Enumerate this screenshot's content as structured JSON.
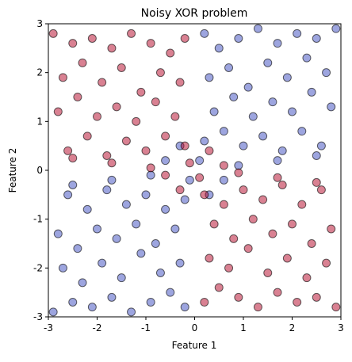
{
  "chart_data": {
    "type": "scatter",
    "title": "Noisy XOR problem",
    "xlabel": "Feature 1",
    "ylabel": "Feature 2",
    "xlim": [
      -3,
      3
    ],
    "ylim": [
      -3,
      3
    ],
    "xticks": [
      -3,
      -2,
      -1,
      0,
      1,
      2,
      3
    ],
    "yticks": [
      -3,
      -2,
      -1,
      0,
      1,
      2,
      3
    ],
    "series": [
      {
        "color": "#3b4cc0",
        "x": [
          0.2,
          0.5,
          0.9,
          1.3,
          1.7,
          2.1,
          2.5,
          2.9,
          0.3,
          0.7,
          1.1,
          1.5,
          1.9,
          2.3,
          2.7,
          0.4,
          0.8,
          1.2,
          1.6,
          2.0,
          2.4,
          2.8,
          0.2,
          0.6,
          1.0,
          1.4,
          1.8,
          2.2,
          2.6,
          0.1,
          0.9,
          1.7,
          2.5,
          -0.3,
          -0.6,
          -0.2,
          -0.5,
          -0.9,
          -1.3,
          -1.7,
          -2.1,
          -2.5,
          -2.9,
          -0.3,
          -0.7,
          -1.1,
          -1.5,
          -1.9,
          -2.3,
          -2.7,
          -0.4,
          -0.8,
          -1.2,
          -1.6,
          -2.0,
          -2.4,
          -2.8,
          -0.2,
          -0.6,
          -1.0,
          -1.4,
          -1.8,
          -2.2,
          -2.6,
          -0.1,
          -0.9,
          -1.7,
          -2.5,
          0.3,
          0.6
        ],
        "values": [
          2.8,
          2.5,
          2.7,
          2.9,
          2.6,
          2.8,
          2.7,
          2.9,
          1.9,
          2.1,
          1.7,
          2.2,
          1.9,
          2.3,
          2.0,
          1.2,
          1.5,
          1.1,
          1.4,
          1.2,
          1.6,
          1.3,
          0.6,
          0.8,
          0.5,
          0.7,
          0.4,
          0.8,
          0.5,
          0.2,
          0.1,
          0.2,
          0.3,
          0.5,
          0.2,
          -2.8,
          -2.5,
          -2.7,
          -2.9,
          -2.6,
          -2.8,
          -2.7,
          -2.9,
          -1.9,
          -2.1,
          -1.7,
          -2.2,
          -1.9,
          -2.3,
          -2.0,
          -1.2,
          -1.5,
          -1.1,
          -1.4,
          -1.2,
          -1.6,
          -1.3,
          -0.6,
          -0.8,
          -0.5,
          -0.7,
          -0.4,
          -0.8,
          -0.5,
          -0.2,
          -0.1,
          -0.2,
          -0.3,
          -0.5,
          -0.2
        ]
      },
      {
        "color": "#b40426",
        "x": [
          -0.2,
          -0.5,
          -0.9,
          -1.3,
          -1.7,
          -2.1,
          -2.5,
          -2.9,
          -0.3,
          -0.7,
          -1.1,
          -1.5,
          -1.9,
          -2.3,
          -2.7,
          -0.4,
          -0.8,
          -1.2,
          -1.6,
          -2.0,
          -2.4,
          -2.8,
          -0.2,
          -0.6,
          -1.0,
          -1.4,
          -1.8,
          -2.2,
          -2.6,
          -0.1,
          -0.9,
          -1.7,
          -2.5,
          0.3,
          0.6,
          0.2,
          0.5,
          0.9,
          1.3,
          1.7,
          2.1,
          2.5,
          2.9,
          0.3,
          0.7,
          1.1,
          1.5,
          1.9,
          2.3,
          2.7,
          0.4,
          0.8,
          1.2,
          1.6,
          2.0,
          2.4,
          2.8,
          0.2,
          0.6,
          1.0,
          1.4,
          1.8,
          2.2,
          2.6,
          0.1,
          0.9,
          1.7,
          2.5,
          -0.3,
          -0.6
        ],
        "values": [
          2.7,
          2.4,
          2.6,
          2.8,
          2.5,
          2.7,
          2.6,
          2.8,
          1.8,
          2.0,
          1.6,
          2.1,
          1.8,
          2.2,
          1.9,
          1.1,
          1.4,
          1.0,
          1.3,
          1.1,
          1.5,
          1.2,
          0.5,
          0.7,
          0.4,
          0.6,
          0.3,
          0.7,
          0.4,
          0.15,
          0.05,
          0.15,
          0.25,
          0.4,
          0.1,
          -2.7,
          -2.4,
          -2.6,
          -2.8,
          -2.5,
          -2.7,
          -2.6,
          -2.8,
          -1.8,
          -2.0,
          -1.6,
          -2.1,
          -1.8,
          -2.2,
          -1.9,
          -1.1,
          -1.4,
          -1.0,
          -1.3,
          -1.1,
          -1.5,
          -1.2,
          -0.5,
          -0.7,
          -0.4,
          -0.6,
          -0.3,
          -0.7,
          -0.4,
          -0.15,
          -0.05,
          -0.15,
          -0.25,
          -0.4,
          -0.1
        ]
      }
    ]
  }
}
